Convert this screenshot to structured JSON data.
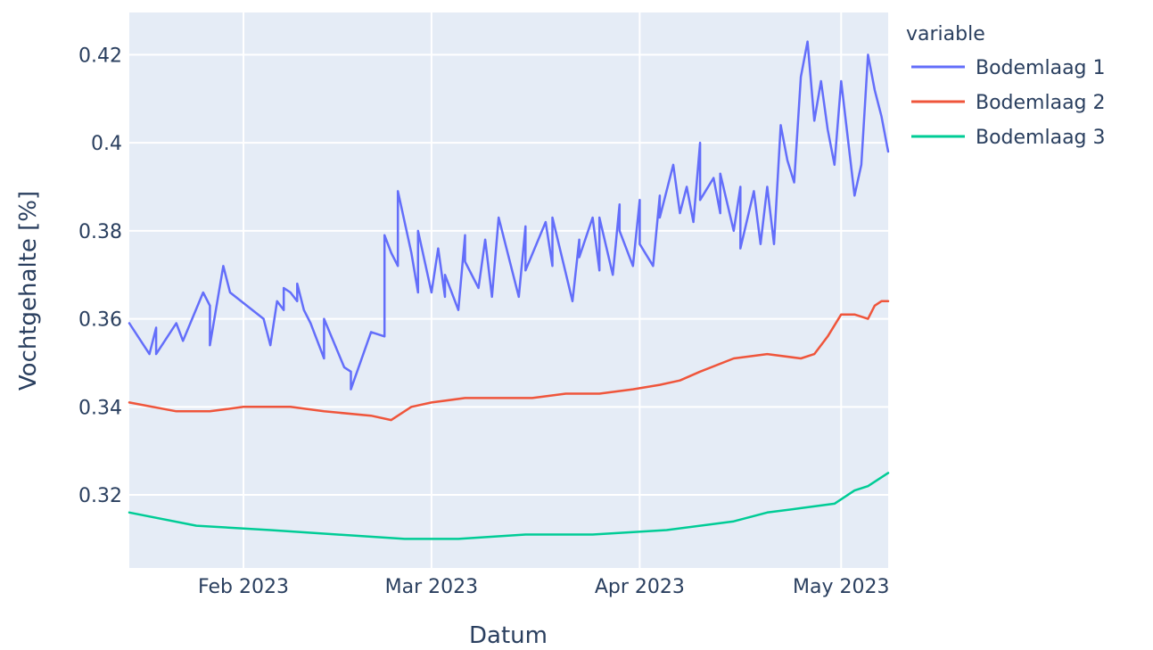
{
  "chart_data": {
    "type": "line",
    "title": "",
    "xlabel": "Datum",
    "ylabel": "Vochtgehalte [%]",
    "x_tick_labels": [
      "Feb 2023",
      "Mar 2023",
      "Apr 2023",
      "May 2023"
    ],
    "x_ticks": [
      "2023-02-01",
      "2023-03-01",
      "2023-04-01",
      "2023-05-01"
    ],
    "xlim": [
      "2023-01-15",
      "2023-05-08"
    ],
    "y_tick_labels": [
      "0.32",
      "0.34",
      "0.36",
      "0.38",
      "0.4",
      "0.42"
    ],
    "y_ticks": [
      0.32,
      0.34,
      0.36,
      0.38,
      0.4,
      0.42
    ],
    "ylim": [
      0.3034,
      0.4296
    ],
    "grid": true,
    "legend_title": "variable",
    "legend_position": "right",
    "background": "#e5ecf6",
    "series": [
      {
        "name": "Bodemlaag 1",
        "color": "#636efa",
        "x": [
          "2023-01-15",
          "2023-01-18",
          "2023-01-19",
          "2023-01-19",
          "2023-01-22",
          "2023-01-23",
          "2023-01-23",
          "2023-01-26",
          "2023-01-27",
          "2023-01-27",
          "2023-01-29",
          "2023-01-30",
          "2023-01-30",
          "2023-02-04",
          "2023-02-05",
          "2023-02-06",
          "2023-02-07",
          "2023-02-07",
          "2023-02-08",
          "2023-02-09",
          "2023-02-09",
          "2023-02-10",
          "2023-02-11",
          "2023-02-13",
          "2023-02-13",
          "2023-02-16",
          "2023-02-17",
          "2023-02-17",
          "2023-02-20",
          "2023-02-22",
          "2023-02-22",
          "2023-02-22",
          "2023-02-23",
          "2023-02-24",
          "2023-02-24",
          "2023-02-26",
          "2023-02-27",
          "2023-02-27",
          "2023-03-01",
          "2023-03-02",
          "2023-03-03",
          "2023-03-03",
          "2023-03-05",
          "2023-03-06",
          "2023-03-06",
          "2023-03-08",
          "2023-03-09",
          "2023-03-10",
          "2023-03-11",
          "2023-03-14",
          "2023-03-15",
          "2023-03-15",
          "2023-03-18",
          "2023-03-19",
          "2023-03-19",
          "2023-03-22",
          "2023-03-23",
          "2023-03-23",
          "2023-03-25",
          "2023-03-26",
          "2023-03-26",
          "2023-03-28",
          "2023-03-29",
          "2023-03-29",
          "2023-03-31",
          "2023-04-01",
          "2023-04-01",
          "2023-04-03",
          "2023-04-04",
          "2023-04-04",
          "2023-04-06",
          "2023-04-07",
          "2023-04-08",
          "2023-04-09",
          "2023-04-10",
          "2023-04-10",
          "2023-04-12",
          "2023-04-13",
          "2023-04-13",
          "2023-04-15",
          "2023-04-16",
          "2023-04-16",
          "2023-04-18",
          "2023-04-19",
          "2023-04-20",
          "2023-04-21",
          "2023-04-22",
          "2023-04-23",
          "2023-04-24",
          "2023-04-25",
          "2023-04-26",
          "2023-04-27",
          "2023-04-28",
          "2023-04-29",
          "2023-04-30",
          "2023-05-01",
          "2023-05-02",
          "2023-05-03",
          "2023-05-04",
          "2023-05-05",
          "2023-05-06",
          "2023-05-07",
          "2023-05-08"
        ],
        "y": [
          0.359,
          0.352,
          0.358,
          0.352,
          0.359,
          0.355,
          0.355,
          0.366,
          0.363,
          0.354,
          0.372,
          0.366,
          0.366,
          0.36,
          0.354,
          0.364,
          0.362,
          0.367,
          0.366,
          0.364,
          0.368,
          0.362,
          0.359,
          0.351,
          0.36,
          0.349,
          0.348,
          0.344,
          0.357,
          0.356,
          0.379,
          0.379,
          0.375,
          0.372,
          0.389,
          0.375,
          0.366,
          0.38,
          0.366,
          0.376,
          0.365,
          0.37,
          0.362,
          0.379,
          0.373,
          0.367,
          0.378,
          0.365,
          0.383,
          0.365,
          0.381,
          0.371,
          0.382,
          0.372,
          0.383,
          0.364,
          0.378,
          0.374,
          0.383,
          0.371,
          0.383,
          0.37,
          0.386,
          0.38,
          0.372,
          0.387,
          0.377,
          0.372,
          0.388,
          0.383,
          0.395,
          0.384,
          0.39,
          0.382,
          0.4,
          0.387,
          0.392,
          0.384,
          0.393,
          0.38,
          0.39,
          0.376,
          0.389,
          0.377,
          0.39,
          0.377,
          0.404,
          0.396,
          0.391,
          0.415,
          0.423,
          0.405,
          0.414,
          0.403,
          0.395,
          0.414,
          0.401,
          0.388,
          0.395,
          0.42,
          0.412,
          0.406,
          0.398
        ]
      },
      {
        "name": "Bodemlaag 2",
        "color": "#ef553b",
        "x": [
          "2023-01-15",
          "2023-01-22",
          "2023-01-27",
          "2023-02-01",
          "2023-02-08",
          "2023-02-13",
          "2023-02-20",
          "2023-02-23",
          "2023-02-26",
          "2023-03-01",
          "2023-03-06",
          "2023-03-11",
          "2023-03-16",
          "2023-03-21",
          "2023-03-26",
          "2023-03-31",
          "2023-04-04",
          "2023-04-07",
          "2023-04-10",
          "2023-04-15",
          "2023-04-20",
          "2023-04-25",
          "2023-04-27",
          "2023-04-29",
          "2023-05-01",
          "2023-05-03",
          "2023-05-05",
          "2023-05-06",
          "2023-05-07",
          "2023-05-08"
        ],
        "y": [
          0.341,
          0.339,
          0.339,
          0.34,
          0.34,
          0.339,
          0.338,
          0.337,
          0.34,
          0.341,
          0.342,
          0.342,
          0.342,
          0.343,
          0.343,
          0.344,
          0.345,
          0.346,
          0.348,
          0.351,
          0.352,
          0.351,
          0.352,
          0.356,
          0.361,
          0.361,
          0.36,
          0.363,
          0.364,
          0.364
        ]
      },
      {
        "name": "Bodemlaag 3",
        "color": "#00cc96",
        "x": [
          "2023-01-15",
          "2023-01-25",
          "2023-02-05",
          "2023-02-15",
          "2023-02-25",
          "2023-03-05",
          "2023-03-15",
          "2023-03-25",
          "2023-04-05",
          "2023-04-15",
          "2023-04-20",
          "2023-04-25",
          "2023-04-30",
          "2023-05-03",
          "2023-05-05",
          "2023-05-08"
        ],
        "y": [
          0.316,
          0.313,
          0.312,
          0.311,
          0.31,
          0.31,
          0.311,
          0.311,
          0.312,
          0.314,
          0.316,
          0.317,
          0.318,
          0.321,
          0.322,
          0.325
        ]
      }
    ]
  }
}
